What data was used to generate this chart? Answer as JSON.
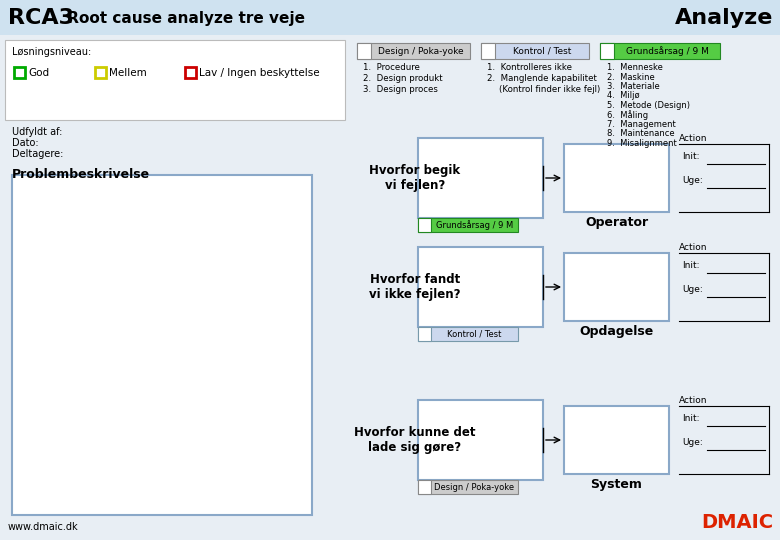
{
  "title_rca": "RCA3",
  "title_sub": " Root cause analyze tre veje",
  "title_analyze": "Analyze",
  "bg_header": "#cfe2f0",
  "bg_body": "#e8eef4",
  "bg_white": "#ffffff",
  "green_edge": "#00aa00",
  "yellow_edge": "#cccc00",
  "red_edge": "#cc0000",
  "blue_box_edge": "#8aa8c8",
  "green_fill": "#55cc44",
  "design_bg": "#cccccc",
  "kontrol_bg": "#ccd8ee",
  "grundarsag_bg": "#55cc44",
  "legend_label_good": "God",
  "legend_label_medium": "Mellem",
  "legend_label_low": "Lav / Ingen beskyttelse",
  "losningsniveau": "Løsningsniveau:",
  "udfyldt": "Udfyldt af:",
  "dato": "Dato:",
  "deltagere": "Deltagere:",
  "prob_title": "Problembeskrivelse",
  "design_title": "Design / Poka-yoke",
  "design_items": [
    "Procedure",
    "Design produkt",
    "Design proces"
  ],
  "kontrol_title": "Kontrol / Test",
  "kontrol_items": [
    "Kontrolleres ikke",
    "Manglende kapabilitet",
    "(Kontrol finder ikke fejl)"
  ],
  "grundarsag_title": "Grundsårsag / 9 M",
  "grundarsag_items": [
    "Menneske",
    "Maskine",
    "Materiale",
    "Miljø",
    "Metode (Design)",
    "Måling",
    "Management",
    "Maintenance",
    "Misalignment"
  ],
  "q1": "Hvorfor begik\nvi fejlen?",
  "q2": "Hvorfor fandt\nvi ikke fejlen?",
  "q3": "Hvorfor kunne det\nlade sig gøre?",
  "label1": "Operator",
  "label2": "Opdagelse",
  "label3": "System",
  "tag1": "Grundsårsag / 9 M",
  "tag2": "Kontrol / Test",
  "tag3": "Design / Poka-yoke",
  "action_label": "Action",
  "init_label": "Init:",
  "uge_label": "Uge:",
  "footer": "www.dmaic.dk",
  "footer_dmaic": "DMAIC"
}
